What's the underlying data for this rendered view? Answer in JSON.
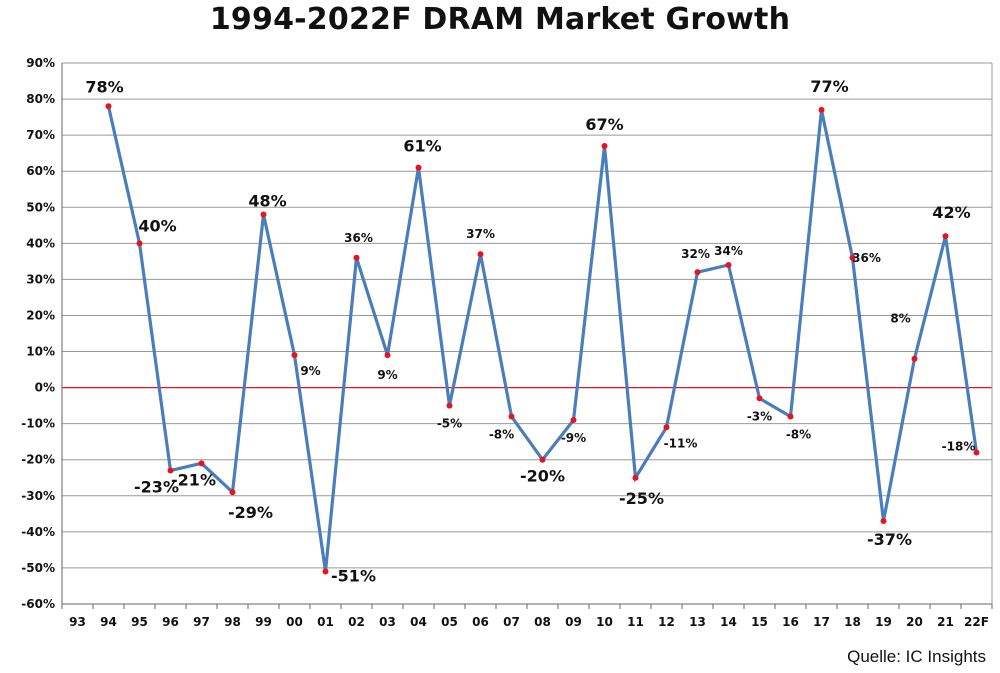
{
  "chart_data": {
    "type": "line",
    "title": "1994-2022F DRAM Market Growth",
    "source": "Quelle: IC Insights",
    "categories": [
      "93",
      "94",
      "95",
      "96",
      "97",
      "98",
      "99",
      "00",
      "01",
      "02",
      "03",
      "04",
      "05",
      "06",
      "07",
      "08",
      "09",
      "10",
      "11",
      "12",
      "13",
      "14",
      "15",
      "16",
      "17",
      "18",
      "19",
      "20",
      "21",
      "22F"
    ],
    "values": [
      null,
      78,
      40,
      -23,
      -21,
      -29,
      48,
      9,
      -51,
      36,
      9,
      61,
      -5,
      37,
      -8,
      -20,
      -9,
      67,
      -25,
      -11,
      32,
      34,
      -3,
      -8,
      77,
      36,
      -37,
      8,
      42,
      -18
    ],
    "labels": [
      "",
      "78%",
      "40%",
      "-23%",
      "-21%",
      "-29%",
      "48%",
      "9%",
      "-51%",
      "36%",
      "9%",
      "61%",
      "-5%",
      "37%",
      "-8%",
      "-20%",
      "-9%",
      "67%",
      "-25%",
      "-11%",
      "32%",
      "34%",
      "-3%",
      "-8%",
      "77%",
      "36%",
      "-37%",
      "8%",
      "42%",
      "-18%"
    ],
    "ylim": [
      -60,
      90
    ],
    "yticks": [
      -60,
      -50,
      -40,
      -30,
      -20,
      -10,
      0,
      10,
      20,
      30,
      40,
      50,
      60,
      70,
      80,
      90
    ],
    "ytick_labels": [
      "-60%",
      "-50%",
      "-40%",
      "-30%",
      "-20%",
      "-10%",
      "0%",
      "10%",
      "20%",
      "30%",
      "40%",
      "50%",
      "60%",
      "70%",
      "80%",
      "90%"
    ],
    "xlabel": "",
    "ylabel": "",
    "grid": true,
    "line_color": "#4a7ebb",
    "marker_color": "#e8141c",
    "zero_line_color": "#e8141c",
    "grid_color": "#9a9a9a"
  }
}
